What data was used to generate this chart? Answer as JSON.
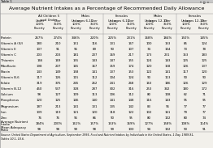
{
  "title": "Average Nutrient Intakes as a Percentage of Recommended Daily Allowance",
  "group_labels": [
    "All Children 5\nand Under",
    "Males\nages 6-11",
    "Females\nages 6-11",
    "Males\nages 12-19",
    "Females\nages 12-19"
  ],
  "subcol_labels": [
    "Under\n100%\nPoverty",
    "Over\n350%\nPoverty"
  ],
  "rows": [
    [
      "Protein",
      "267%",
      "274%",
      "346%",
      "220%",
      "225%",
      "231%",
      "168%",
      "184%",
      "150%",
      "145%"
    ],
    [
      "Vitamin A (IU)",
      "180",
      "210",
      "151",
      "116",
      "131",
      "167",
      "100",
      "153",
      "85",
      "124"
    ],
    [
      "Vitamin E",
      "107",
      "91",
      "96",
      "89",
      "90",
      "107",
      "74",
      "104",
      "73",
      "78"
    ],
    [
      "Vitamin C",
      "203",
      "203",
      "181",
      "207",
      "169",
      "217",
      "173",
      "231",
      "153",
      "183"
    ],
    [
      "Thiamin",
      "166",
      "169",
      "155",
      "143",
      "147",
      "155",
      "124",
      "143",
      "125",
      "125"
    ],
    [
      "Riboflavin",
      "198",
      "207",
      "165",
      "167",
      "159",
      "174",
      "120",
      "158",
      "126",
      "137"
    ],
    [
      "Niacin",
      "143",
      "149",
      "158",
      "141",
      "137",
      "153",
      "122",
      "141",
      "117",
      "120"
    ],
    [
      "Vitamin B-6",
      "117",
      "126",
      "115",
      "112",
      "104",
      "124",
      "90",
      "113",
      "90",
      "90"
    ],
    [
      "Folate",
      "319",
      "376",
      "245",
      "262",
      "241",
      "268",
      "163",
      "186",
      "126",
      "129"
    ],
    [
      "Vitamin B-12",
      "450",
      "537",
      "328",
      "287",
      "302",
      "316",
      "253",
      "342",
      "180",
      "172"
    ],
    [
      "Calcium",
      "98",
      "127",
      "109",
      "113",
      "106",
      "112",
      "80",
      "108",
      "62",
      "71"
    ],
    [
      "Phosphorus",
      "120",
      "125",
      "146",
      "140",
      "141",
      "148",
      "116",
      "143",
      "95",
      "95"
    ],
    [
      "Magnesium",
      "187",
      "213",
      "141",
      "131",
      "135",
      "142",
      "83",
      "96",
      "77",
      "77"
    ],
    [
      "Iron",
      "109",
      "119",
      "121",
      "120",
      "118",
      "122",
      "102",
      "161",
      "79",
      "77"
    ],
    [
      "Zinc",
      "76",
      "76",
      "96",
      "86",
      "90",
      "95",
      "80",
      "102",
      "80",
      "74"
    ],
    [
      "Average Nutrient\nIntake",
      "184%",
      "200%",
      "161%",
      "157%",
      "153%",
      "169%",
      "127%",
      "158%",
      "108%",
      "114%"
    ],
    [
      "Mean Adequacy\nRatio",
      "98",
      "98",
      "99",
      "98",
      "99",
      "100",
      "94",
      "102",
      "90",
      "91"
    ]
  ],
  "source_text": "Source: United States Department of Agriculture, September 1995, Food and Nutrient Intakes by Individuals in the United States, 1 Day, 1989-91,\nTables 10.1, 10.6.",
  "bg_color": "#c8c8c8",
  "table_bg": "#f2f0eb",
  "line_color": "#999999",
  "text_color": "#000000",
  "window_title": "Table 1",
  "title_fontsize": 4.5,
  "header_fontsize": 2.8,
  "data_fontsize": 2.8,
  "source_fontsize": 2.3
}
